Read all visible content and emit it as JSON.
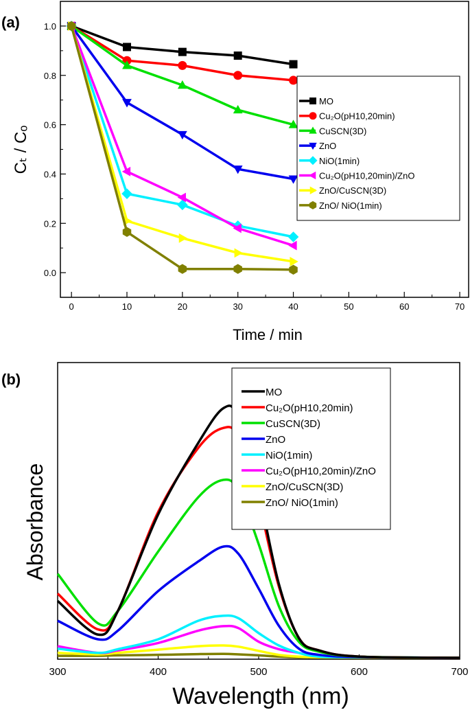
{
  "chart_data": [
    {
      "panel_label": "(a)",
      "type": "line",
      "xlabel": "Time / min",
      "ylabel": "Cₜ / Cₒ",
      "xlim": [
        -2,
        71.6
      ],
      "ylim": [
        -0.1,
        1.1
      ],
      "xticks": [
        0,
        10,
        20,
        30,
        40,
        50,
        60,
        70
      ],
      "yticks": [
        "0.0",
        "0.2",
        "0.4",
        "0.6",
        "0.8",
        "1.0"
      ],
      "grid": false,
      "legend_position": "right",
      "x": [
        0,
        10,
        20,
        30,
        40
      ],
      "series": [
        {
          "name": "MO",
          "color": "#000000",
          "marker": "square",
          "values": [
            1.0,
            0.915,
            0.895,
            0.88,
            0.845
          ]
        },
        {
          "name": "Cu₂O(pH10,20min)",
          "color": "#ff0000",
          "marker": "circle",
          "values": [
            1.0,
            0.86,
            0.84,
            0.8,
            0.78
          ]
        },
        {
          "name": "CuSCN(3D)",
          "color": "#00e000",
          "marker": "triangle-up",
          "values": [
            1.0,
            0.84,
            0.76,
            0.66,
            0.6
          ]
        },
        {
          "name": "ZnO",
          "color": "#0000ee",
          "marker": "triangle-down",
          "values": [
            1.0,
            0.69,
            0.56,
            0.42,
            0.38
          ]
        },
        {
          "name": "NiO(1min)",
          "color": "#00f0ff",
          "marker": "diamond",
          "values": [
            1.0,
            0.32,
            0.275,
            0.19,
            0.145
          ]
        },
        {
          "name": "Cu₂O(pH10,20min)/ZnO",
          "color": "#ff00ff",
          "marker": "triangle-left",
          "values": [
            1.0,
            0.41,
            0.305,
            0.18,
            0.11
          ]
        },
        {
          "name": "ZnO/CuSCN(3D)",
          "color": "#ffff00",
          "marker": "triangle-right",
          "values": [
            1.0,
            0.21,
            0.14,
            0.08,
            0.045
          ]
        },
        {
          "name": "ZnO/ NiO(1min)",
          "color": "#808000",
          "marker": "hexagon",
          "values": [
            1.0,
            0.165,
            0.015,
            0.015,
            0.012
          ]
        }
      ]
    },
    {
      "panel_label": "(b)",
      "type": "line",
      "xlabel": "Wavelength (nm)",
      "ylabel": "Absorbance",
      "xlim": [
        300,
        700
      ],
      "ylim": [
        0,
        1.2
      ],
      "xticks": [
        300,
        400,
        500,
        600,
        700
      ],
      "yticks": [],
      "grid": false,
      "legend_position": "top-right",
      "x": [
        300,
        340,
        360,
        400,
        440,
        465,
        480,
        500,
        520,
        540,
        560,
        600,
        700
      ],
      "series": [
        {
          "name": "MO",
          "color": "#000000",
          "values": [
            0.23,
            0.094,
            0.19,
            0.58,
            0.87,
            1.01,
            0.97,
            0.67,
            0.3,
            0.08,
            0.03,
            0.005,
            0
          ]
        },
        {
          "name": "Cu₂O(pH10,20min)",
          "color": "#ff0000",
          "values": [
            0.26,
            0.115,
            0.19,
            0.59,
            0.85,
            0.93,
            0.89,
            0.63,
            0.29,
            0.08,
            0.03,
            0.005,
            0
          ]
        },
        {
          "name": "CuSCN(3D)",
          "color": "#00e000",
          "values": [
            0.34,
            0.14,
            0.19,
            0.43,
            0.65,
            0.72,
            0.675,
            0.46,
            0.21,
            0.065,
            0.025,
            0.005,
            0
          ]
        },
        {
          "name": "ZnO",
          "color": "#0000ee",
          "values": [
            0.15,
            0.075,
            0.11,
            0.27,
            0.39,
            0.45,
            0.42,
            0.28,
            0.13,
            0.037,
            0.012,
            0.003,
            0
          ]
        },
        {
          "name": "NiO(1min)",
          "color": "#00f0ff",
          "values": [
            0.037,
            0.02,
            0.035,
            0.075,
            0.15,
            0.17,
            0.16,
            0.1,
            0.05,
            0.02,
            0.005,
            0.002,
            0
          ]
        },
        {
          "name": "Cu₂O(pH10,20min)/ZnO",
          "color": "#ff00ff",
          "values": [
            0.047,
            0.02,
            0.03,
            0.06,
            0.11,
            0.128,
            0.12,
            0.065,
            0.035,
            0.02,
            0.005,
            0.002,
            0
          ]
        },
        {
          "name": "ZnO/CuSCN(3D)",
          "color": "#ffff00",
          "values": [
            0.02,
            0.014,
            0.02,
            0.033,
            0.047,
            0.05,
            0.045,
            0.028,
            0.012,
            0.005,
            0.002,
            0.001,
            0
          ]
        },
        {
          "name": "ZnO/ NiO(1min)",
          "color": "#808000",
          "values": [
            0.008,
            0.008,
            0.01,
            0.012,
            0.015,
            0.016,
            0.014,
            0.01,
            0.005,
            0.002,
            0.001,
            0,
            0
          ]
        }
      ]
    }
  ]
}
